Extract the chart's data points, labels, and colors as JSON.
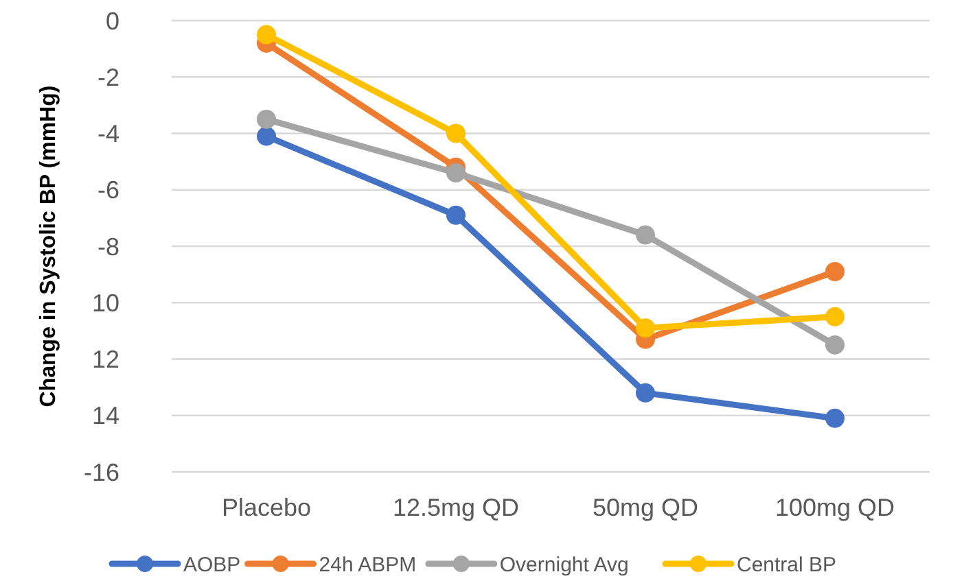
{
  "chart_data": {
    "type": "line",
    "ylabel": "Change in Systolic BP (mmHg)",
    "categories": [
      "Placebo",
      "12.5mg QD",
      "50mg QD",
      "100mg QD"
    ],
    "series": [
      {
        "name": "AOBP",
        "color": "#4472c4",
        "values": [
          -4.1,
          -6.9,
          -13.2,
          -14.1
        ]
      },
      {
        "name": "24h ABPM",
        "color": "#ed7d31",
        "values": [
          -0.8,
          -5.2,
          -11.3,
          -8.9
        ]
      },
      {
        "name": "Overnight Avg",
        "color": "#a5a5a5",
        "values": [
          -3.5,
          -5.4,
          -7.6,
          -11.5
        ]
      },
      {
        "name": "Central BP",
        "color": "#ffc000",
        "values": [
          -0.5,
          -4.0,
          -10.9,
          -10.5
        ]
      }
    ],
    "ylim": [
      -16,
      0
    ],
    "yticks": [
      0,
      -2,
      -4,
      -6,
      -8,
      {
        "value": -10,
        "label": "10"
      },
      {
        "value": -12,
        "label": "12"
      },
      {
        "value": -14,
        "label": "14"
      },
      -16
    ],
    "grid": "y",
    "legend": "bottom",
    "marker": "circle",
    "line_style": "solid"
  }
}
